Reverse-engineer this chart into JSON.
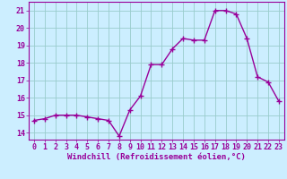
{
  "x": [
    0,
    1,
    2,
    3,
    4,
    5,
    6,
    7,
    8,
    9,
    10,
    11,
    12,
    13,
    14,
    15,
    16,
    17,
    18,
    19,
    20,
    21,
    22,
    23
  ],
  "y": [
    14.7,
    14.8,
    15.0,
    15.0,
    15.0,
    14.9,
    14.8,
    14.7,
    13.8,
    15.3,
    16.1,
    17.9,
    17.9,
    18.8,
    19.4,
    19.3,
    19.3,
    21.0,
    21.0,
    20.8,
    19.4,
    17.2,
    16.9,
    15.8
  ],
  "line_color": "#990099",
  "marker": "+",
  "markersize": 4,
  "linewidth": 1.0,
  "bg_color": "#cceeff",
  "grid_color": "#99cccc",
  "xlabel": "Windchill (Refroidissement éolien,°C)",
  "xlabel_fontsize": 6.5,
  "yticks": [
    14,
    15,
    16,
    17,
    18,
    19,
    20,
    21
  ],
  "xticks": [
    0,
    1,
    2,
    3,
    4,
    5,
    6,
    7,
    8,
    9,
    10,
    11,
    12,
    13,
    14,
    15,
    16,
    17,
    18,
    19,
    20,
    21,
    22,
    23
  ],
  "ylim": [
    13.6,
    21.5
  ],
  "xlim": [
    -0.5,
    23.5
  ],
  "tick_fontsize": 6,
  "markeredgewidth": 1.0
}
